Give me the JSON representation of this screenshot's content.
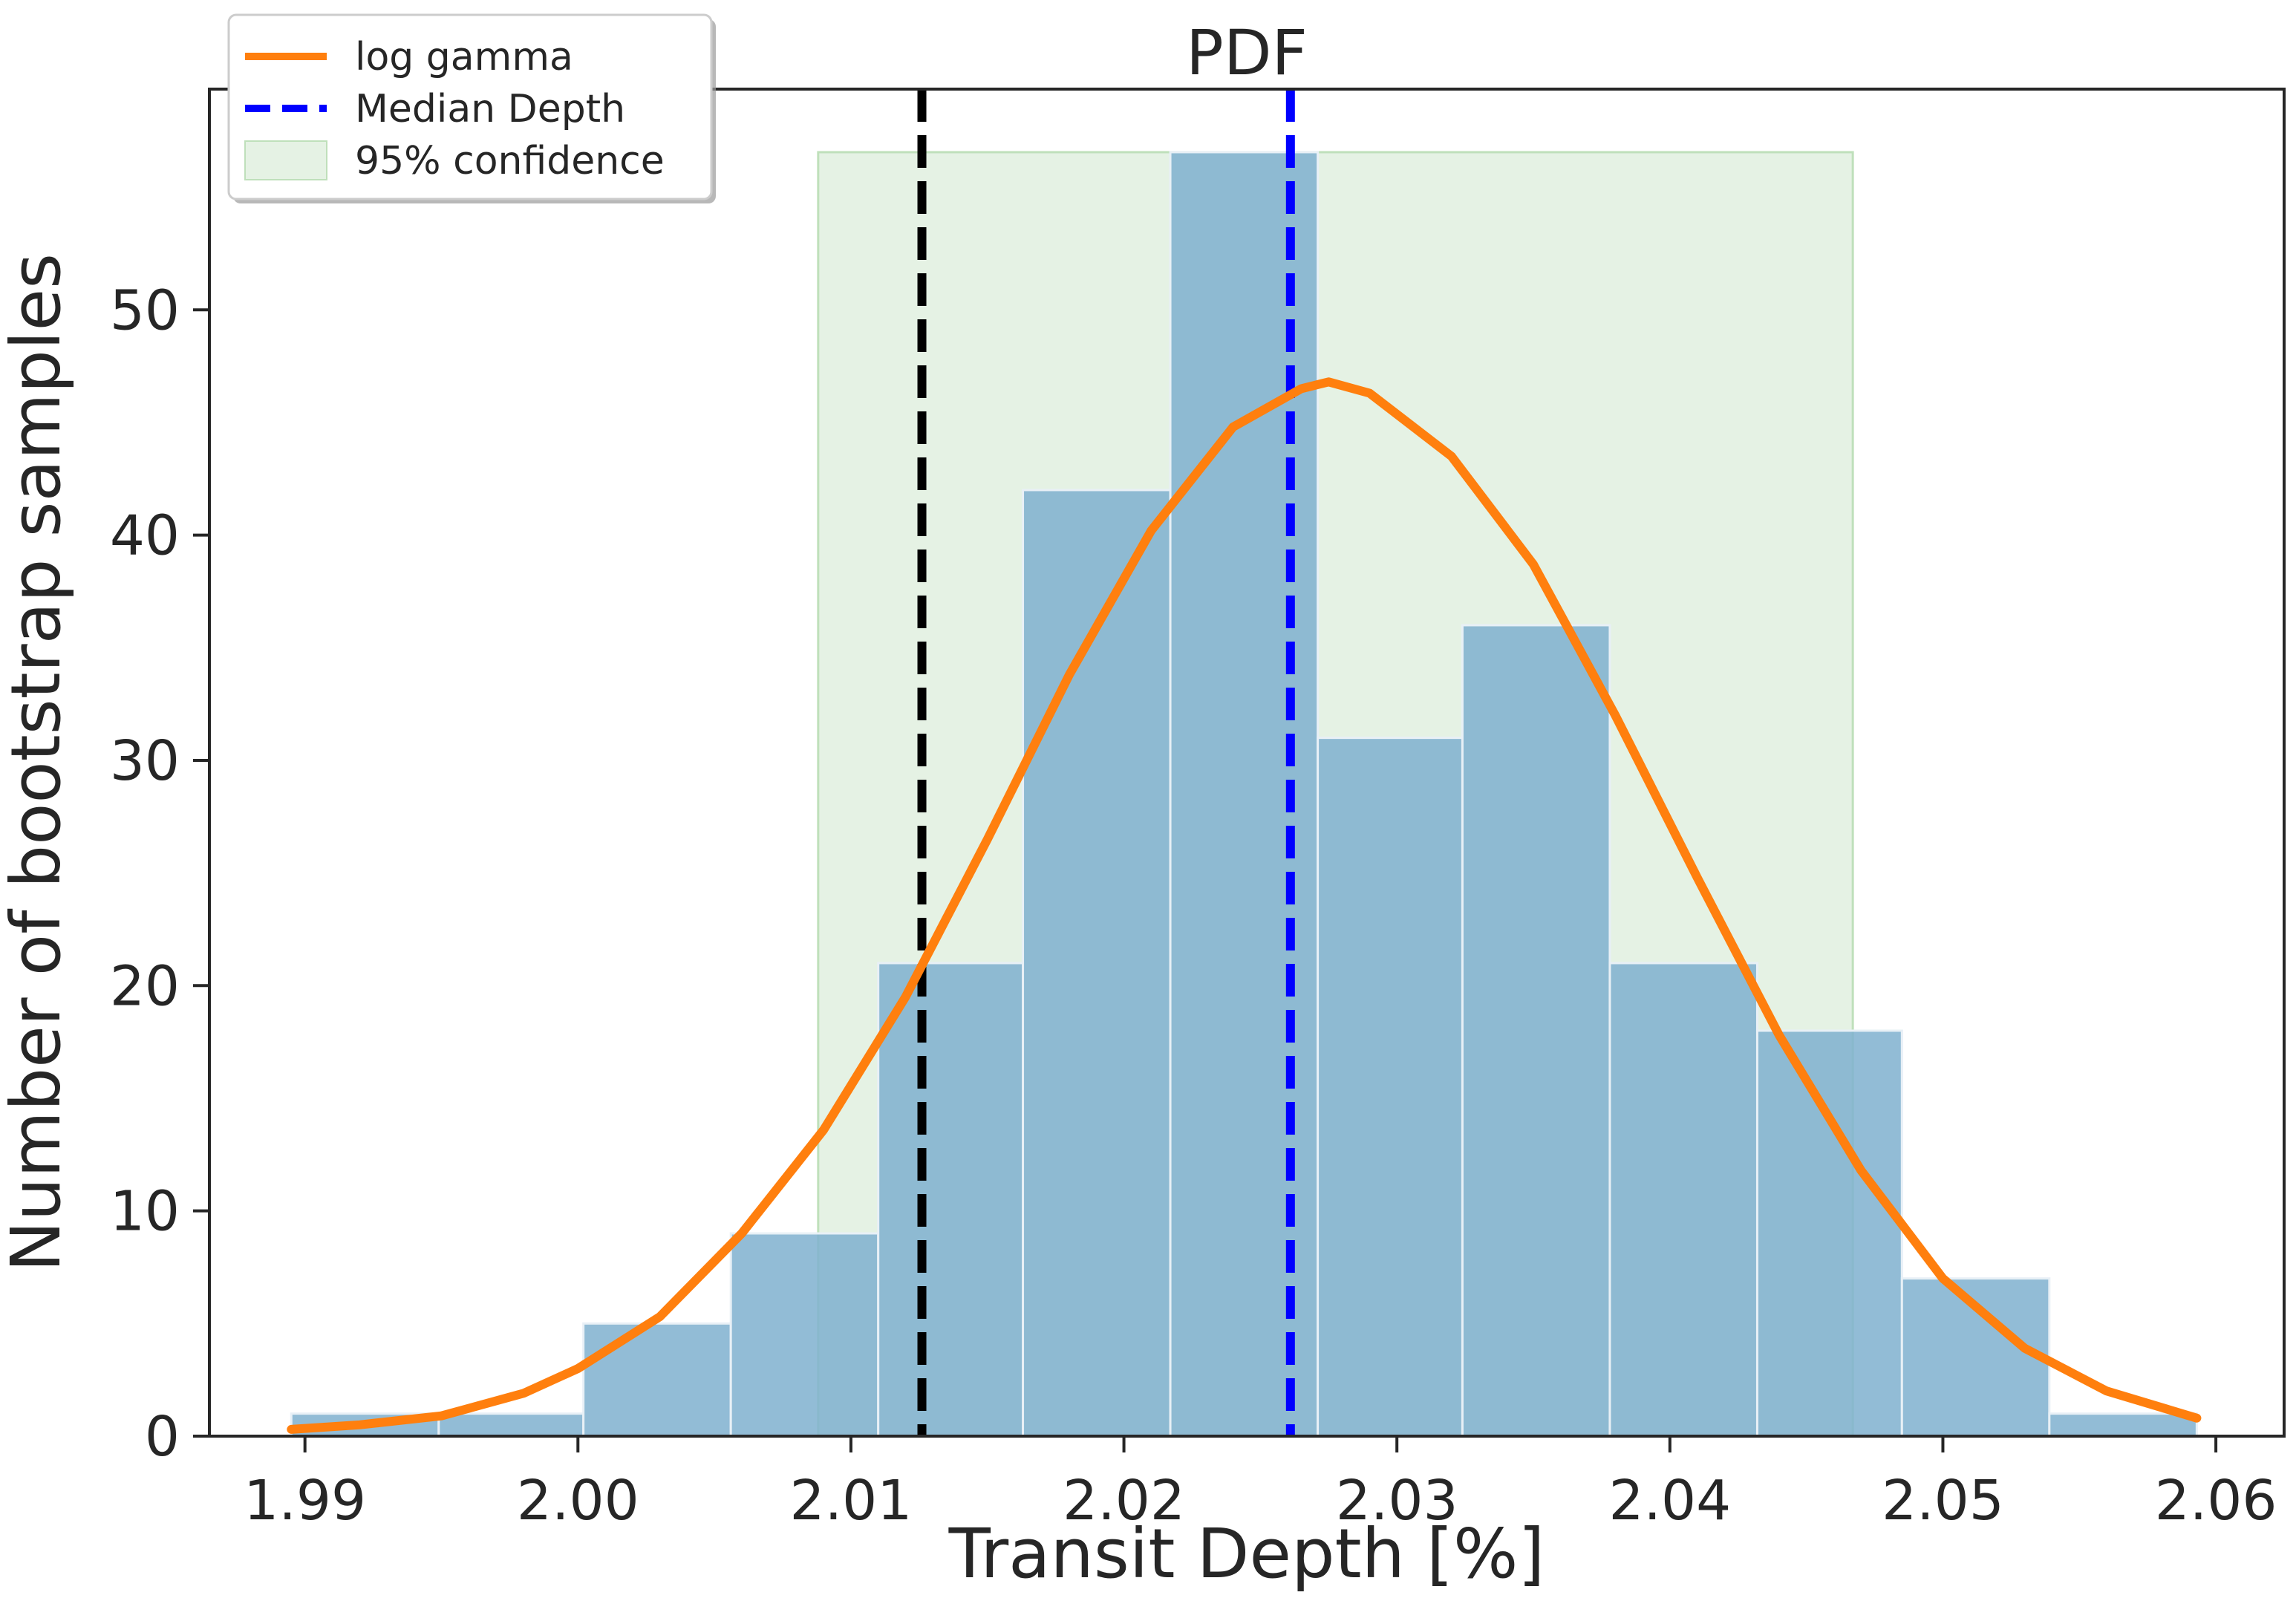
{
  "chart_data": {
    "type": "bar",
    "title": "PDF",
    "xlabel": "Transit Depth [%]",
    "ylabel": "Number of bootstrap samples",
    "xlim": [
      1.9865,
      2.0625
    ],
    "ylim": [
      0,
      59.8
    ],
    "x_ticks": [
      1.99,
      2.0,
      2.01,
      2.02,
      2.03,
      2.04,
      2.05,
      2.06
    ],
    "x_tick_labels": [
      "1.99",
      "2.00",
      "2.01",
      "2.02",
      "2.03",
      "2.04",
      "2.05",
      "2.06"
    ],
    "y_ticks": [
      0,
      10,
      20,
      30,
      40,
      50
    ],
    "y_tick_labels": [
      "0",
      "10",
      "20",
      "30",
      "40",
      "50"
    ],
    "grid": false,
    "histogram": {
      "name": "bootstrap samples",
      "color": "#7fb0cf",
      "bin_edges": [
        1.9895,
        1.9949,
        2.0002,
        2.0056,
        2.011,
        2.0163,
        2.0217,
        2.0271,
        2.0324,
        2.0378,
        2.0432,
        2.0485,
        2.0539,
        2.0593
      ],
      "counts": [
        1,
        1,
        5,
        9,
        21,
        42,
        57,
        31,
        36,
        21,
        18,
        7,
        1
      ]
    },
    "curve": {
      "name": "log gamma",
      "color": "#ff7f0e",
      "x": [
        1.9895,
        1.992,
        1.995,
        1.998,
        2.0,
        2.003,
        2.006,
        2.009,
        2.012,
        2.015,
        2.018,
        2.021,
        2.024,
        2.0265,
        2.0275,
        2.029,
        2.032,
        2.035,
        2.038,
        2.041,
        2.044,
        2.047,
        2.05,
        2.053,
        2.056,
        2.0593
      ],
      "y": [
        0.3,
        0.5,
        0.9,
        1.9,
        3.0,
        5.3,
        9.0,
        13.6,
        19.5,
        26.5,
        33.8,
        40.2,
        44.8,
        46.5,
        46.8,
        46.3,
        43.5,
        38.7,
        32.0,
        24.8,
        17.8,
        11.8,
        7.0,
        3.9,
        2.0,
        0.8
      ]
    },
    "vertical_lines": [
      {
        "name": "Median Depth",
        "x": 2.0261,
        "color": "#0000ff",
        "style": "dashed"
      },
      {
        "x": 2.0126,
        "color": "#000000",
        "style": "dashed"
      }
    ],
    "span": {
      "name": "95% confidence",
      "x0": 2.0088,
      "x1": 2.0467,
      "y_top": 57,
      "color": "#d7ebd5"
    },
    "legend": {
      "placement": "top-left",
      "entries": [
        {
          "label": "log gamma",
          "kind": "line",
          "color": "#ff7f0e"
        },
        {
          "label": "Median Depth",
          "kind": "dashed",
          "color": "#0000ff"
        },
        {
          "label": "95% confidence",
          "kind": "patch",
          "color": "#d7ebd5"
        }
      ]
    }
  }
}
